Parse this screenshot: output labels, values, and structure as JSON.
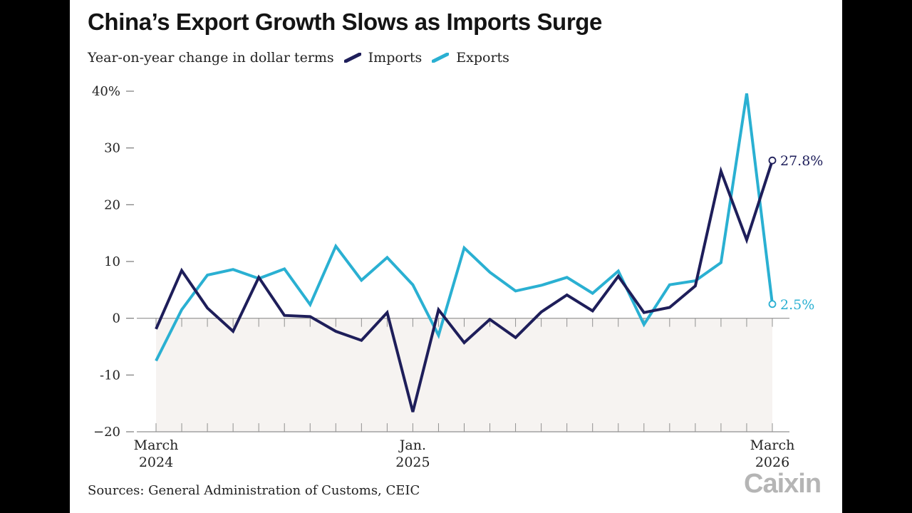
{
  "colors": {
    "imports": "#1e1e5a",
    "exports": "#2ab0d2",
    "shade": "#f6f3f1",
    "axis": "#7a7a7a",
    "text": "#222222"
  },
  "header": {
    "title": "China’s Export Growth Slows as Imports Surge",
    "subtitle": "Year-on-year change in dollar terms"
  },
  "footer": {
    "source": "Sources: General Administration of Customs, CEIC",
    "logo": "Caixin"
  },
  "chart_data": {
    "type": "line",
    "title": "China’s Export Growth Slows as Imports Surge",
    "subtitle": "Year-on-year change in dollar terms",
    "xlabel": "",
    "ylabel": "",
    "ylim": [
      -20,
      40
    ],
    "yticks": [
      -20,
      -10,
      0,
      10,
      20,
      30,
      40
    ],
    "ytick_labels": [
      "−20",
      "-10",
      "0",
      "10",
      "20",
      "30",
      "40%"
    ],
    "x": [
      "2024-03",
      "2024-04",
      "2024-05",
      "2024-06",
      "2024-07",
      "2024-08",
      "2024-09",
      "2024-10",
      "2024-11",
      "2024-12",
      "2025-01",
      "2025-02",
      "2025-03",
      "2025-04",
      "2025-05",
      "2025-06",
      "2025-07",
      "2025-08",
      "2025-09",
      "2025-10",
      "2025-11",
      "2025-12",
      "2026-01",
      "2026-02",
      "2026-03"
    ],
    "xtick_labels": [
      {
        "index": 0,
        "line1": "March",
        "line2": "2024"
      },
      {
        "index": 10,
        "line1": "Jan.",
        "line2": "2025"
      },
      {
        "index": 24,
        "line1": "March",
        "line2": "2026"
      }
    ],
    "legend_position": "top-left",
    "series": [
      {
        "name": "Imports",
        "key": "imports",
        "values": [
          -1.9,
          8.4,
          1.8,
          -2.3,
          7.2,
          0.5,
          0.3,
          -2.3,
          -3.9,
          1.0,
          -16.5,
          1.5,
          -4.3,
          -0.2,
          -3.4,
          1.1,
          4.1,
          1.3,
          7.4,
          1.0,
          1.9,
          5.7,
          25.9,
          13.8,
          27.8
        ],
        "end_label": "27.8%"
      },
      {
        "name": "Exports",
        "key": "exports",
        "values": [
          -7.5,
          1.5,
          7.6,
          8.6,
          7.0,
          8.7,
          2.4,
          12.7,
          6.7,
          10.7,
          5.9,
          -3.0,
          12.4,
          8.1,
          4.8,
          5.8,
          7.2,
          4.4,
          8.3,
          -1.1,
          5.9,
          6.6,
          9.8,
          39.6,
          2.5
        ],
        "end_label": "2.5%"
      }
    ]
  }
}
